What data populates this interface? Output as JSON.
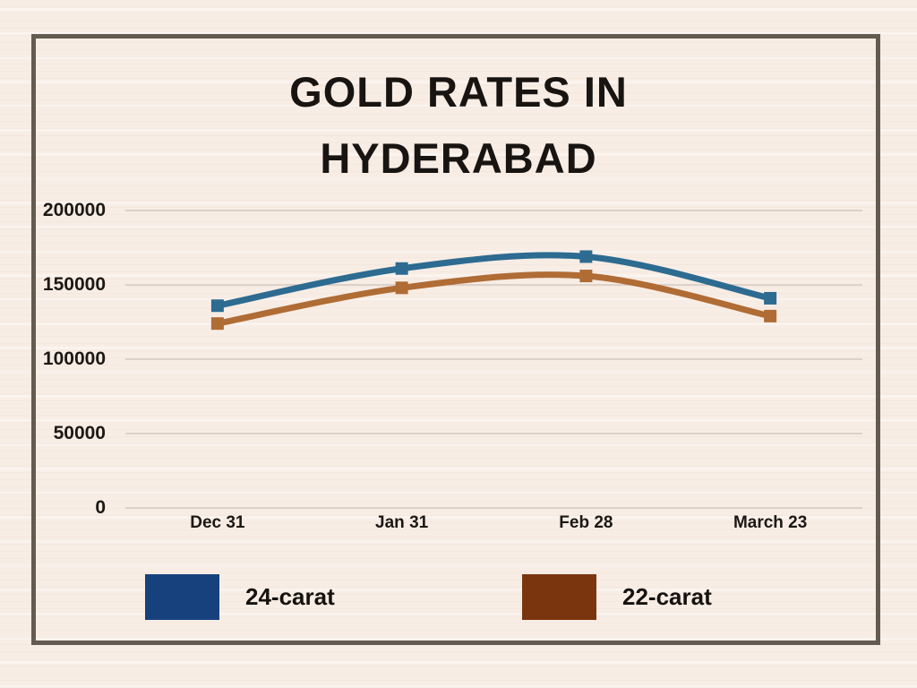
{
  "title": {
    "line1": "GOLD RATES IN",
    "line2": "HYDERABAD"
  },
  "chart_data": {
    "type": "line",
    "title": "GOLD RATES IN HYDERABAD",
    "categories": [
      "Dec 31",
      "Jan 31",
      "Feb 28",
      "March 23"
    ],
    "series": [
      {
        "name": "24-carat",
        "values": [
          136000,
          161000,
          169000,
          141000
        ],
        "line_color": "#2d6b91",
        "legend_color": "#17417d"
      },
      {
        "name": "22-carat",
        "values": [
          124000,
          148000,
          156000,
          129000
        ],
        "line_color": "#b06c35",
        "legend_color": "#7b350e"
      }
    ],
    "xlabel": "",
    "ylabel": "",
    "ylim": [
      0,
      200000
    ],
    "yticks": [
      0,
      50000,
      100000,
      150000,
      200000
    ],
    "ytick_labels": [
      "0",
      "50000",
      "100000",
      "150000",
      "200000"
    ],
    "grid": true,
    "marker": "square",
    "legend_position": "bottom"
  },
  "colors": {
    "background": "#f8ede5",
    "frame_border": "#635b50",
    "gridline": "#c9c2ba",
    "text": "#1b1814"
  }
}
